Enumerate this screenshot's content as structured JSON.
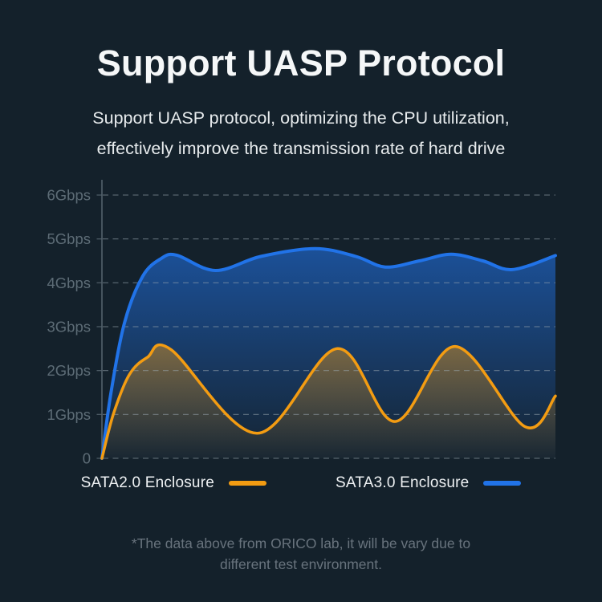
{
  "page": {
    "background": "#14212b"
  },
  "title": "Support UASP Protocol",
  "subtitle": {
    "lines": [
      "Support UASP protocol, optimizing the CPU utilization,",
      "effectively improve the transmission rate of hard drive"
    ]
  },
  "chart_data": {
    "type": "area",
    "ylim": [
      0,
      6
    ],
    "y_ticks": [
      {
        "label": "6Gbps",
        "value": 6
      },
      {
        "label": "5Gbps",
        "value": 5
      },
      {
        "label": "4Gbps",
        "value": 4
      },
      {
        "label": "3Gbps",
        "value": 3
      },
      {
        "label": "2Gbps",
        "value": 2
      },
      {
        "label": "1Gbps",
        "value": 1
      },
      {
        "label": "0",
        "value": 0
      }
    ],
    "grid": "dashed-horizontal",
    "x_unit": "fraction-of-chart-width (no x-axis labels shown)",
    "y_unit": "Gbps",
    "legend_position": "bottom",
    "colors": {
      "grid": "#9aa7b0",
      "axis": "#53616b",
      "tick_text": "#5d6c76"
    },
    "series": [
      {
        "name": "SATA2.0 Enclosure",
        "color": "#f39c12",
        "points": [
          [
            0,
            0
          ],
          [
            0.025,
            1.0
          ],
          [
            0.06,
            1.9
          ],
          [
            0.1,
            2.3
          ],
          [
            0.152,
            2.48
          ],
          [
            0.342,
            0.57
          ],
          [
            0.519,
            2.5
          ],
          [
            0.646,
            0.84
          ],
          [
            0.779,
            2.55
          ],
          [
            0.933,
            0.72
          ],
          [
            1.0,
            1.42
          ]
        ]
      },
      {
        "name": "SATA3.0 Enclosure",
        "color": "#2173e8",
        "points": [
          [
            0,
            0
          ],
          [
            0.02,
            1.5
          ],
          [
            0.05,
            3.1
          ],
          [
            0.09,
            4.15
          ],
          [
            0.13,
            4.55
          ],
          [
            0.165,
            4.63
          ],
          [
            0.25,
            4.28
          ],
          [
            0.35,
            4.6
          ],
          [
            0.47,
            4.78
          ],
          [
            0.56,
            4.6
          ],
          [
            0.625,
            4.36
          ],
          [
            0.7,
            4.5
          ],
          [
            0.77,
            4.65
          ],
          [
            0.84,
            4.5
          ],
          [
            0.905,
            4.3
          ],
          [
            1.0,
            4.62
          ]
        ]
      }
    ]
  },
  "legend": {
    "items": [
      {
        "label": "SATA2.0 Enclosure",
        "color": "#f39c12"
      },
      {
        "label": "SATA3.0 Enclosure",
        "color": "#2173e8"
      }
    ]
  },
  "footnote": {
    "lines": [
      "*The data above from ORICO lab, it will be vary due to",
      "different test environment."
    ]
  }
}
